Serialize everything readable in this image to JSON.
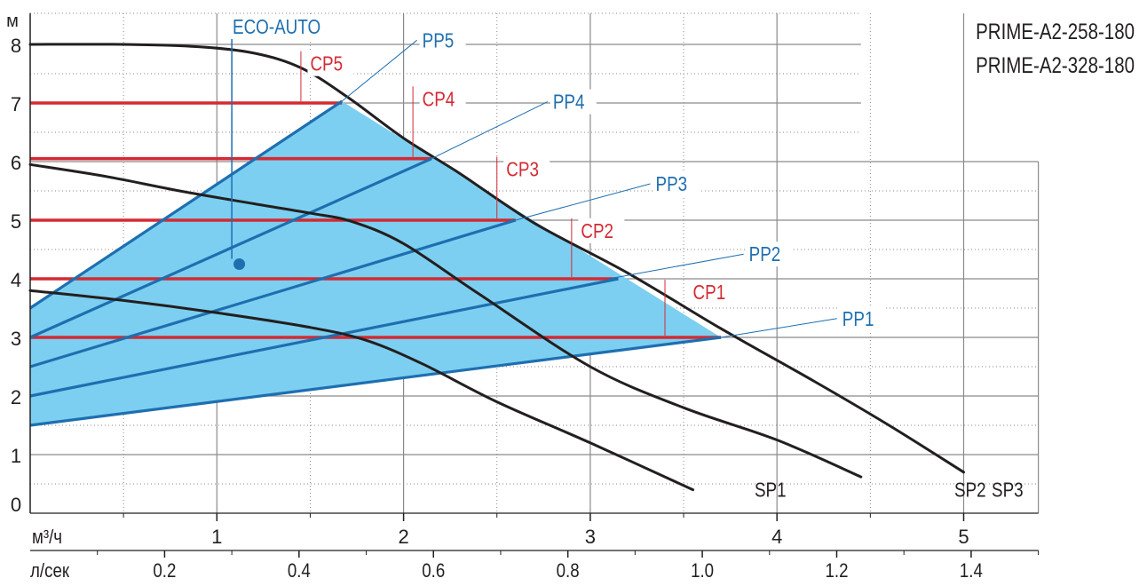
{
  "models": [
    "PRIME-A2-258-180",
    "PRIME-A2-328-180"
  ],
  "chart_data": {
    "type": "line",
    "title": "PRIME-A2-258-180 / PRIME-A2-328-180",
    "ylabel": "м",
    "xlabel_primary": "м³/ч",
    "xlabel_secondary": "л/сек",
    "ylim": [
      0,
      8
    ],
    "xlim": [
      0,
      5.4
    ],
    "grid": true,
    "y_ticks": [
      "0",
      "1",
      "2",
      "3",
      "4",
      "5",
      "6",
      "7",
      "8"
    ],
    "x_ticks_m3h": [
      "1",
      "2",
      "3",
      "4",
      "5"
    ],
    "x_ticks_ls": [
      "0.2",
      "0.4",
      "0.6",
      "0.8",
      "1.0",
      "1.2",
      "1.4"
    ],
    "eco_auto": {
      "label": "ECO-AUTO",
      "point": [
        1.12,
        4.25
      ]
    },
    "series": [
      {
        "name": "SP1",
        "kind": "speed",
        "label_at": [
          3.88,
          0.28
        ],
        "points": [
          [
            0,
            3.8
          ],
          [
            0.5,
            3.63
          ],
          [
            1.0,
            3.42
          ],
          [
            1.5,
            3.17
          ],
          [
            1.8,
            2.95
          ],
          [
            2.1,
            2.55
          ],
          [
            2.5,
            1.9
          ],
          [
            3.0,
            1.2
          ],
          [
            3.55,
            0.4
          ]
        ]
      },
      {
        "name": "SP2",
        "kind": "speed",
        "label_at": [
          4.95,
          0.28
        ],
        "points": [
          [
            0,
            5.95
          ],
          [
            0.4,
            5.75
          ],
          [
            0.8,
            5.5
          ],
          [
            1.2,
            5.28
          ],
          [
            1.5,
            5.12
          ],
          [
            1.72,
            4.98
          ],
          [
            2.0,
            4.6
          ],
          [
            2.4,
            3.75
          ],
          [
            3.0,
            2.5
          ],
          [
            3.5,
            1.8
          ],
          [
            4.0,
            1.25
          ],
          [
            4.45,
            0.62
          ]
        ]
      },
      {
        "name": "SP3",
        "kind": "speed",
        "label_at": [
          5.15,
          0.28
        ],
        "points": [
          [
            0,
            8.0
          ],
          [
            0.5,
            8.0
          ],
          [
            0.9,
            7.96
          ],
          [
            1.2,
            7.85
          ],
          [
            1.45,
            7.6
          ],
          [
            1.7,
            7.1
          ],
          [
            2.0,
            6.4
          ],
          [
            2.3,
            5.8
          ],
          [
            2.7,
            4.95
          ],
          [
            3.2,
            4.1
          ],
          [
            3.7,
            3.15
          ],
          [
            4.2,
            2.25
          ],
          [
            4.6,
            1.5
          ],
          [
            5.0,
            0.7
          ]
        ]
      },
      {
        "name": "PP1",
        "kind": "proportional",
        "label_at": [
          4.35,
          3.2
        ],
        "label_anchor": [
          3.7,
          3.0
        ],
        "points": [
          [
            0,
            1.5
          ],
          [
            3.7,
            3.0
          ]
        ]
      },
      {
        "name": "PP2",
        "kind": "proportional",
        "label_at": [
          3.85,
          4.3
        ],
        "label_anchor": [
          3.1,
          4.0
        ],
        "points": [
          [
            0,
            2.0
          ],
          [
            3.15,
            4.0
          ]
        ]
      },
      {
        "name": "PP3",
        "kind": "proportional",
        "label_at": [
          3.35,
          5.5
        ],
        "label_anchor": [
          2.6,
          5.0
        ],
        "points": [
          [
            0,
            2.5
          ],
          [
            2.6,
            5.0
          ]
        ]
      },
      {
        "name": "PP4",
        "kind": "proportional",
        "label_at": [
          2.8,
          6.9
        ],
        "label_anchor": [
          2.15,
          6.05
        ],
        "points": [
          [
            0,
            3.0
          ],
          [
            2.15,
            6.05
          ]
        ]
      },
      {
        "name": "PP5",
        "kind": "proportional",
        "label_at": [
          2.1,
          7.95
        ],
        "label_anchor": [
          1.67,
          7.03
        ],
        "points": [
          [
            0,
            3.5
          ],
          [
            1.67,
            7.03
          ]
        ]
      },
      {
        "name": "CP1",
        "kind": "constant",
        "label_at": [
          3.55,
          3.65
        ],
        "mark_x": 3.4,
        "points": [
          [
            0,
            3.0
          ],
          [
            3.7,
            3.0
          ]
        ]
      },
      {
        "name": "CP2",
        "kind": "constant",
        "label_at": [
          2.95,
          4.7
        ],
        "mark_x": 2.9,
        "points": [
          [
            0,
            4.0
          ],
          [
            3.15,
            4.0
          ]
        ]
      },
      {
        "name": "CP3",
        "kind": "constant",
        "label_at": [
          2.55,
          5.75
        ],
        "mark_x": 2.5,
        "points": [
          [
            0,
            5.0
          ],
          [
            2.6,
            5.0
          ]
        ]
      },
      {
        "name": "CP4",
        "kind": "constant",
        "label_at": [
          2.1,
          6.95
        ],
        "mark_x": 2.05,
        "points": [
          [
            0,
            6.05
          ],
          [
            2.15,
            6.05
          ]
        ]
      },
      {
        "name": "CP5",
        "kind": "constant",
        "label_at": [
          1.5,
          7.55
        ],
        "mark_x": 1.45,
        "points": [
          [
            0,
            7.0
          ],
          [
            1.67,
            7.0
          ]
        ]
      }
    ],
    "region": {
      "fill": "#7ccff0",
      "points": [
        [
          0,
          1.5
        ],
        [
          3.7,
          3.0
        ],
        [
          1.67,
          7.03
        ],
        [
          0,
          3.5
        ]
      ]
    },
    "colors": {
      "speed": "#231f20",
      "proportional": "#1e6fb0",
      "constant": "#d42a33",
      "grid": "#8a8a8a",
      "region": "#7ccff0",
      "label_blue": "#1e6fb0",
      "label_red": "#d42a33"
    }
  }
}
